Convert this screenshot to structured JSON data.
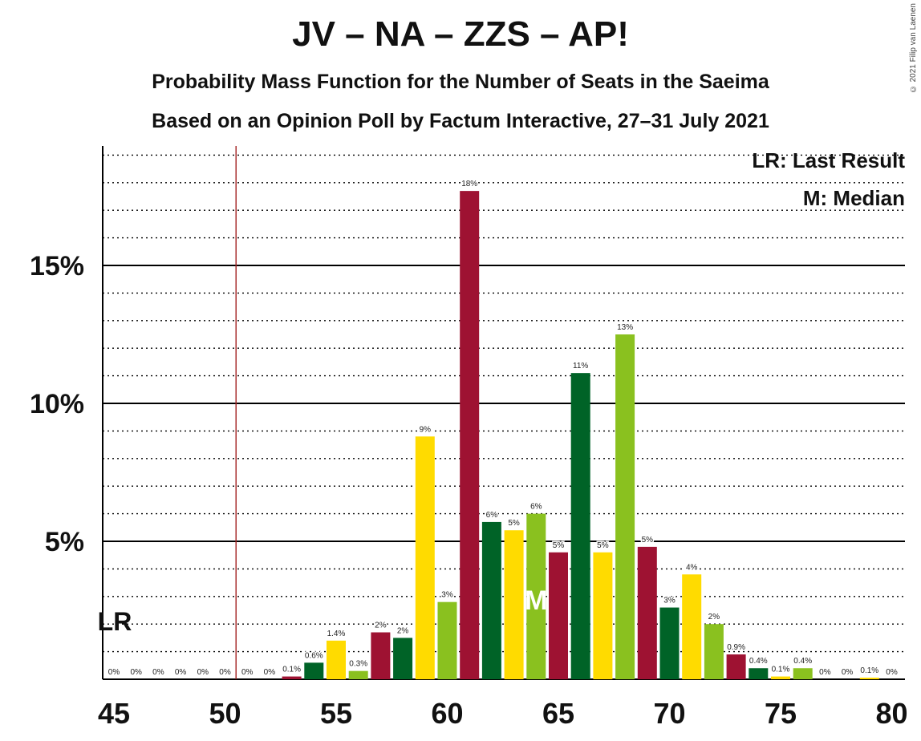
{
  "title": "JV – NA – ZZS – AP!",
  "subtitle1": "Probability Mass Function for the Number of Seats in the Saeima",
  "subtitle2": "Based on an Opinion Poll by Factum Interactive, 27–31 July 2021",
  "copyright": "© 2021 Filip van Laenen",
  "legend": {
    "last_result": "LR: Last Result",
    "median": "M: Median"
  },
  "colors": {
    "dark_red": "#9E1232",
    "dark_green": "#006327",
    "yellow": "#FFDB00",
    "light_green": "#8AC11F",
    "last_result_line": "#A21F1F",
    "grid": "#000000"
  },
  "chart_data": {
    "type": "bar",
    "xlim": [
      45,
      80
    ],
    "ylim": [
      0,
      19
    ],
    "x_ticks": [
      45,
      50,
      55,
      60,
      65,
      70,
      75,
      80
    ],
    "y_ticks": [
      {
        "value": 5,
        "label": "5%"
      },
      {
        "value": 10,
        "label": "10%"
      },
      {
        "value": 15,
        "label": "15%"
      }
    ],
    "last_result": 51,
    "last_result_label": "LR",
    "median": 64,
    "median_label": "M",
    "color_cycle": [
      "dark_red",
      "dark_green",
      "yellow",
      "light_green"
    ],
    "bars": [
      {
        "x": 45,
        "value": 0,
        "label": "0%"
      },
      {
        "x": 46,
        "value": 0,
        "label": "0%"
      },
      {
        "x": 47,
        "value": 0,
        "label": "0%"
      },
      {
        "x": 48,
        "value": 0,
        "label": "0%"
      },
      {
        "x": 49,
        "value": 0,
        "label": "0%"
      },
      {
        "x": 50,
        "value": 0,
        "label": "0%"
      },
      {
        "x": 51,
        "value": 0,
        "label": "0%"
      },
      {
        "x": 52,
        "value": 0,
        "label": "0%"
      },
      {
        "x": 53,
        "value": 0.1,
        "label": "0.1%"
      },
      {
        "x": 54,
        "value": 0.6,
        "label": "0.6%"
      },
      {
        "x": 55,
        "value": 1.4,
        "label": "1.4%"
      },
      {
        "x": 56,
        "value": 0.3,
        "label": "0.3%"
      },
      {
        "x": 57,
        "value": 1.7,
        "label": "2%"
      },
      {
        "x": 58,
        "value": 1.5,
        "label": "2%"
      },
      {
        "x": 59,
        "value": 8.8,
        "label": "9%"
      },
      {
        "x": 60,
        "value": 2.8,
        "label": "3%"
      },
      {
        "x": 61,
        "value": 17.7,
        "label": "18%"
      },
      {
        "x": 62,
        "value": 5.7,
        "label": "6%"
      },
      {
        "x": 63,
        "value": 5.4,
        "label": "5%"
      },
      {
        "x": 64,
        "value": 6.0,
        "label": "6%"
      },
      {
        "x": 65,
        "value": 4.6,
        "label": "5%"
      },
      {
        "x": 66,
        "value": 11.1,
        "label": "11%"
      },
      {
        "x": 67,
        "value": 4.6,
        "label": "5%"
      },
      {
        "x": 68,
        "value": 12.5,
        "label": "13%"
      },
      {
        "x": 69,
        "value": 4.8,
        "label": "5%"
      },
      {
        "x": 70,
        "value": 2.6,
        "label": "3%"
      },
      {
        "x": 71,
        "value": 3.8,
        "label": "4%"
      },
      {
        "x": 72,
        "value": 2.0,
        "label": "2%"
      },
      {
        "x": 73,
        "value": 0.9,
        "label": "0.9%"
      },
      {
        "x": 74,
        "value": 0.4,
        "label": "0.4%"
      },
      {
        "x": 75,
        "value": 0.1,
        "label": "0.1%"
      },
      {
        "x": 76,
        "value": 0.4,
        "label": "0.4%"
      },
      {
        "x": 77,
        "value": 0,
        "label": "0%"
      },
      {
        "x": 78,
        "value": 0,
        "label": "0%"
      },
      {
        "x": 79,
        "value": 0.05,
        "label": "0.1%"
      },
      {
        "x": 80,
        "value": 0,
        "label": "0%"
      }
    ]
  }
}
